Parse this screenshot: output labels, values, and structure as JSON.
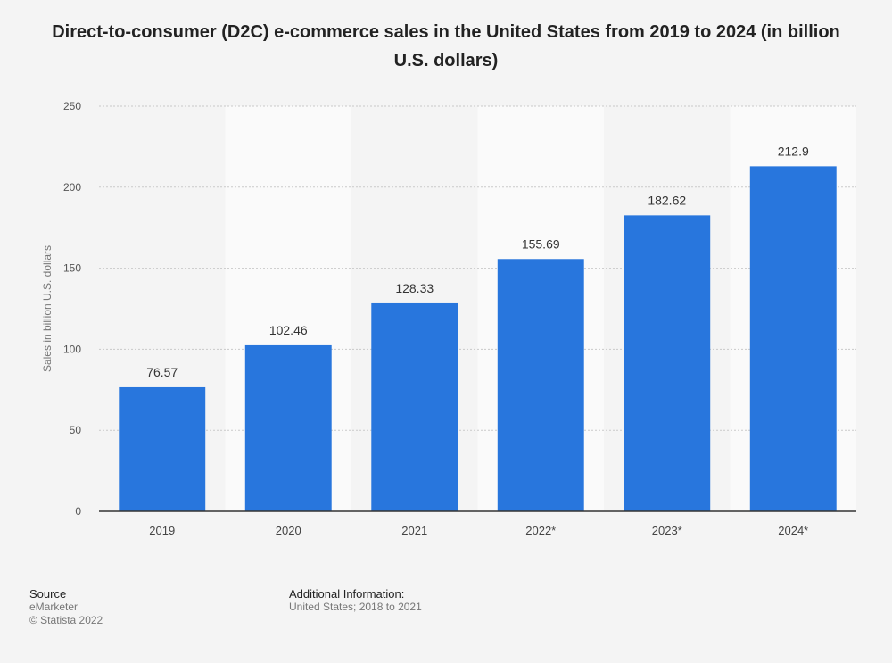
{
  "chart_data": {
    "type": "bar",
    "title": "Direct-to-consumer (D2C) e-commerce sales in the United States from 2019 to 2024 (in billion U.S. dollars)",
    "xlabel": "",
    "ylabel": "Sales in billion U.S. dollars",
    "categories": [
      "2019",
      "2020",
      "2021",
      "2022*",
      "2023*",
      "2024*"
    ],
    "values": [
      76.57,
      102.46,
      128.33,
      155.69,
      182.62,
      212.9
    ],
    "value_labels": [
      "76.57",
      "102.46",
      "128.33",
      "155.69",
      "182.62",
      "212.9"
    ],
    "ylim": [
      0,
      250
    ],
    "yticks": [
      0,
      50,
      100,
      150,
      200,
      250
    ],
    "grid": true,
    "bar_color": "#2876dd"
  },
  "footer": {
    "source_heading": "Source",
    "source_name": "eMarketer",
    "copyright": "© Statista 2022",
    "additional_heading": "Additional Information:",
    "additional_text": "United States; 2018 to 2021"
  }
}
